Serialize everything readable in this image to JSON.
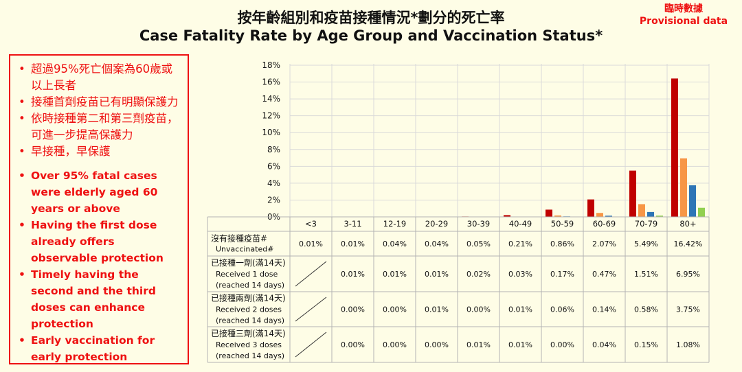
{
  "header": {
    "title_zh": "按年齡組別和疫苗接種情況*劃分的死亡率",
    "title_en": "Case Fatality Rate by Age Group and Vaccination Status*",
    "provisional_zh": "臨時數據",
    "provisional_en": "Provisional data"
  },
  "notes": {
    "zh": [
      "超過95%死亡個案為60歲或以上長者",
      "接種首劑疫苗已有明顯保護力",
      "依時接種第二和第三劑疫苗，可進一步提高保護力",
      "早接種，早保護"
    ],
    "en": [
      "Over 95% fatal cases were elderly aged 60 years or above",
      "Having the first dose already offers observable protection",
      "Timely having the second and the third doses can enhance protection",
      "Early vaccination for early protection"
    ]
  },
  "chart_data": {
    "type": "bar",
    "categories": [
      "<3",
      "3-11",
      "12-19",
      "20-29",
      "30-39",
      "40-49",
      "50-59",
      "60-69",
      "70-79",
      "80+"
    ],
    "yticks": [
      "0%",
      "2%",
      "4%",
      "6%",
      "8%",
      "10%",
      "12%",
      "14%",
      "16%",
      "18%"
    ],
    "ylim": [
      0,
      18
    ],
    "grid": true,
    "series": [
      {
        "name_lines": [
          "沒有接種疫苗#",
          "Unvaccinated#"
        ],
        "color": "#c00000",
        "values": [
          0.01,
          0.01,
          0.04,
          0.04,
          0.05,
          0.21,
          0.86,
          2.07,
          5.49,
          16.42
        ],
        "labels": [
          "0.01%",
          "0.01%",
          "0.04%",
          "0.04%",
          "0.05%",
          "0.21%",
          "0.86%",
          "2.07%",
          "5.49%",
          "16.42%"
        ]
      },
      {
        "name_lines": [
          "已接種一劑(滿14天)",
          "Received 1 dose",
          "(reached 14 days)"
        ],
        "color": "#f79646",
        "values": [
          null,
          0.01,
          0.01,
          0.01,
          0.02,
          0.03,
          0.17,
          0.47,
          1.51,
          6.95
        ],
        "labels": [
          "",
          "0.01%",
          "0.01%",
          "0.01%",
          "0.02%",
          "0.03%",
          "0.17%",
          "0.47%",
          "1.51%",
          "6.95%"
        ]
      },
      {
        "name_lines": [
          "已接種兩劑(滿14天)",
          "Received 2 doses",
          "(reached 14 days)"
        ],
        "color": "#2e75b6",
        "values": [
          null,
          0.0,
          0.0,
          0.01,
          0.0,
          0.01,
          0.06,
          0.14,
          0.58,
          3.75
        ],
        "labels": [
          "",
          "0.00%",
          "0.00%",
          "0.01%",
          "0.00%",
          "0.01%",
          "0.06%",
          "0.14%",
          "0.58%",
          "3.75%"
        ]
      },
      {
        "name_lines": [
          "已接種三劑(滿14天)",
          "Received 3 doses",
          "(reached 14 days)"
        ],
        "color": "#92d050",
        "values": [
          null,
          0.0,
          0.0,
          0.0,
          0.01,
          0.01,
          0.0,
          0.04,
          0.15,
          1.08
        ],
        "labels": [
          "",
          "0.00%",
          "0.00%",
          "0.00%",
          "0.01%",
          "0.01%",
          "0.00%",
          "0.04%",
          "0.15%",
          "1.08%"
        ]
      }
    ]
  }
}
